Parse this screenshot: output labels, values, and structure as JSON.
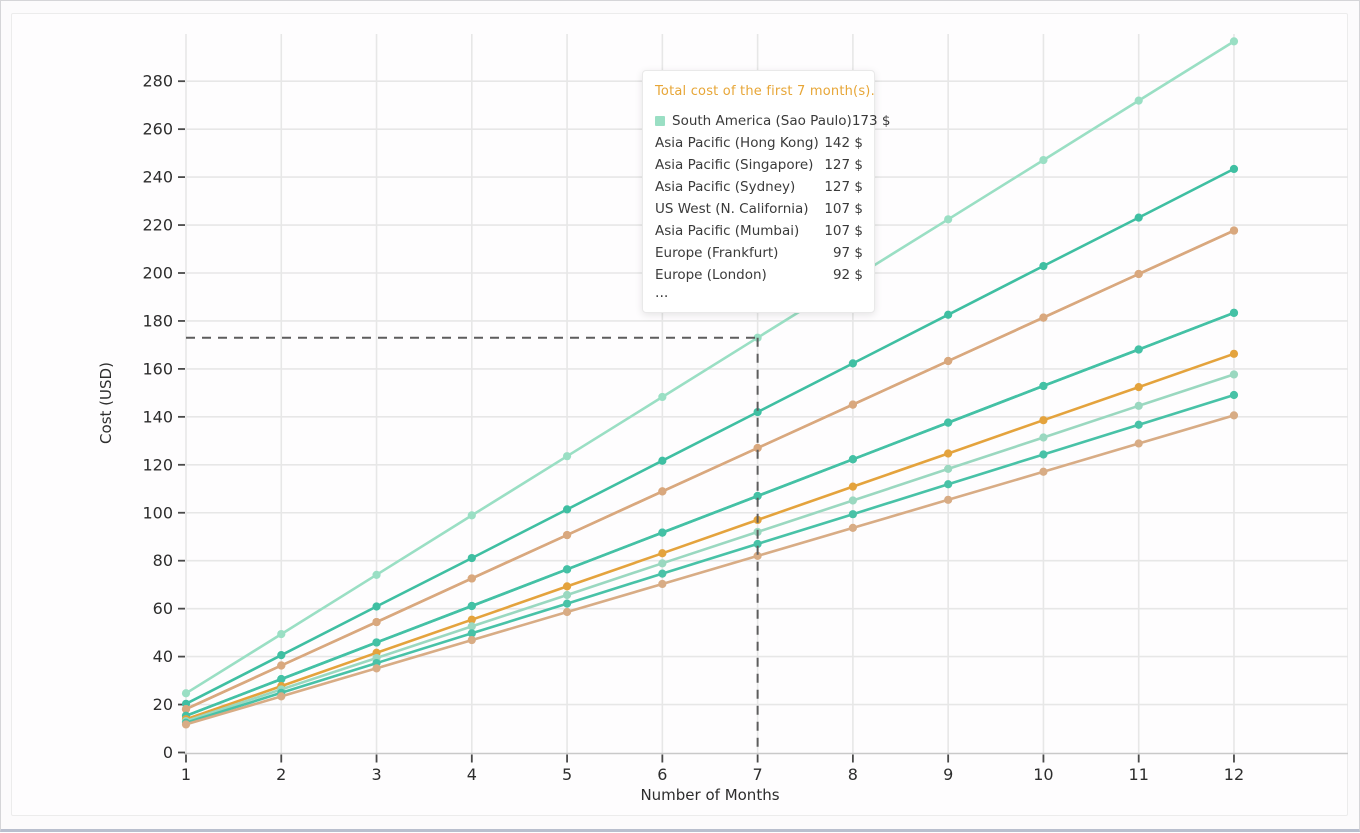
{
  "tooltip": {
    "title": "Total cost of the first 7 month(s).",
    "title_color": "#E7A637",
    "rows": [
      {
        "label": "South America (Sao Paulo)",
        "value": "173 $",
        "marker_color": "#9ADFC4"
      },
      {
        "label": "Asia Pacific (Hong Kong)",
        "value": "142 $"
      },
      {
        "label": "Asia Pacific (Singapore)",
        "value": "127 $"
      },
      {
        "label": "Asia Pacific (Sydney)",
        "value": "127 $"
      },
      {
        "label": "US West (N. California)",
        "value": "107 $"
      },
      {
        "label": "Asia Pacific (Mumbai)",
        "value": "107 $"
      },
      {
        "label": "Europe (Frankfurt)",
        "value": "97 $"
      },
      {
        "label": "Europe (London)",
        "value": "92 $"
      }
    ],
    "more_indicator": "..."
  },
  "chart_data": {
    "type": "line",
    "xlabel": "Number of Months",
    "ylabel": "Cost (USD)",
    "x": [
      1,
      2,
      3,
      4,
      5,
      6,
      7,
      8,
      9,
      10,
      11,
      12
    ],
    "y_ticks": [
      0,
      20,
      40,
      60,
      80,
      100,
      120,
      140,
      160,
      180,
      200,
      220,
      240,
      260,
      280
    ],
    "xlim": [
      1,
      12
    ],
    "ylim": [
      0,
      300
    ],
    "grid": true,
    "crosshair": {
      "month": 7,
      "value": 173
    },
    "series": [
      {
        "name": "South America (Sao Paulo)",
        "total_7_months": 173,
        "color": "#9ADFC4",
        "values": [
          24.7,
          49.4,
          74.1,
          98.9,
          123.6,
          148.3,
          173.0,
          197.7,
          222.4,
          247.1,
          271.9,
          296.6
        ]
      },
      {
        "name": "Asia Pacific (Hong Kong)",
        "total_7_months": 142,
        "color": "#3FBFA2",
        "values": [
          20.3,
          40.6,
          60.9,
          81.1,
          101.4,
          121.7,
          142.0,
          162.3,
          182.6,
          202.9,
          223.1,
          243.4
        ]
      },
      {
        "name": "Asia Pacific (Singapore)",
        "total_7_months": 127,
        "color": "#D9A87E",
        "values": [
          18.1,
          36.3,
          54.4,
          72.6,
          90.7,
          108.9,
          127.0,
          145.1,
          163.3,
          181.4,
          199.6,
          217.7
        ]
      },
      {
        "name": "Asia Pacific (Sydney)",
        "total_7_months": 127,
        "color": "#D9A87E",
        "values": [
          18.1,
          36.3,
          54.4,
          72.6,
          90.7,
          108.9,
          127.0,
          145.1,
          163.3,
          181.4,
          199.6,
          217.7
        ]
      },
      {
        "name": "US West (N. California)",
        "total_7_months": 107,
        "color": "#44C1A5",
        "values": [
          15.3,
          30.6,
          45.9,
          61.1,
          76.4,
          91.7,
          107.0,
          122.3,
          137.6,
          152.9,
          168.1,
          183.4
        ]
      },
      {
        "name": "Asia Pacific (Mumbai)",
        "total_7_months": 107,
        "color": "#44C1A5",
        "values": [
          15.3,
          30.6,
          45.9,
          61.1,
          76.4,
          91.7,
          107.0,
          122.3,
          137.6,
          152.9,
          168.1,
          183.4
        ]
      },
      {
        "name": "Europe (Frankfurt)",
        "total_7_months": 97,
        "color": "#E4A33D",
        "values": [
          13.9,
          27.7,
          41.6,
          55.4,
          69.3,
          83.1,
          97.0,
          110.9,
          124.7,
          138.6,
          152.4,
          166.3
        ]
      },
      {
        "name": "Europe (London)",
        "total_7_months": 92,
        "color": "#9AD8C0",
        "values": [
          13.1,
          26.3,
          39.4,
          52.6,
          65.7,
          78.9,
          92.0,
          105.1,
          118.3,
          131.4,
          144.6,
          157.7
        ]
      },
      {
        "name": "",
        "total_7_months": 87,
        "color": "#48C2A7",
        "values": [
          12.4,
          24.9,
          37.3,
          49.7,
          62.1,
          74.6,
          87.0,
          99.4,
          111.9,
          124.3,
          136.7,
          149.1
        ]
      },
      {
        "name": "",
        "total_7_months": 82,
        "color": "#D8AC85",
        "values": [
          11.7,
          23.4,
          35.1,
          46.9,
          58.6,
          70.3,
          82.0,
          93.7,
          105.4,
          117.1,
          128.9,
          140.6
        ]
      }
    ]
  },
  "style": {
    "gridline_color": "#e7e7e7",
    "axis_line_color": "#c9c9c9",
    "tick_color": "#4a4a4a",
    "label_color": "#2d2d2d",
    "crosshair_color": "#5d5d5d"
  }
}
